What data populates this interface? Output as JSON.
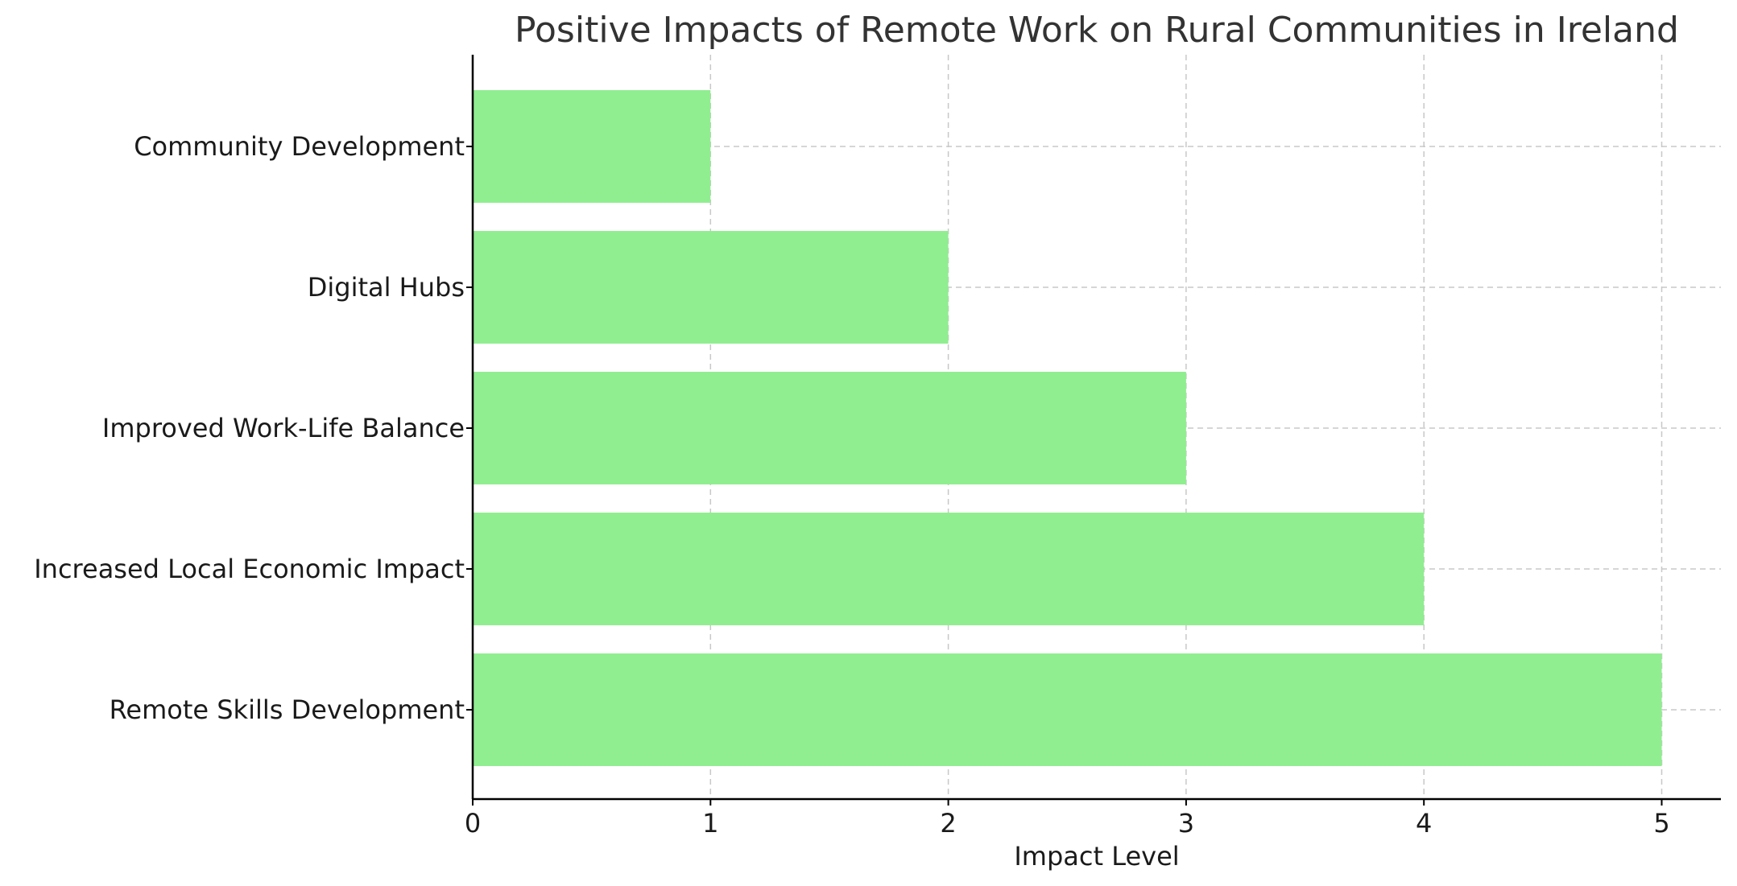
{
  "chart_data": {
    "type": "bar",
    "orientation": "horizontal",
    "title": "Positive Impacts of Remote Work on Rural Communities in Ireland",
    "xlabel": "Impact Level",
    "ylabel": "",
    "categories": [
      "Community Development",
      "Digital Hubs",
      "Improved Work-Life Balance",
      "Increased Local Economic Impact",
      "Remote Skills Development"
    ],
    "values": [
      1,
      2,
      3,
      4,
      5
    ],
    "xlim": [
      0,
      5.25
    ],
    "x_ticks": [
      "0",
      "1",
      "2",
      "3",
      "4",
      "5"
    ],
    "grid": true,
    "bar_color": "#90ee90"
  }
}
